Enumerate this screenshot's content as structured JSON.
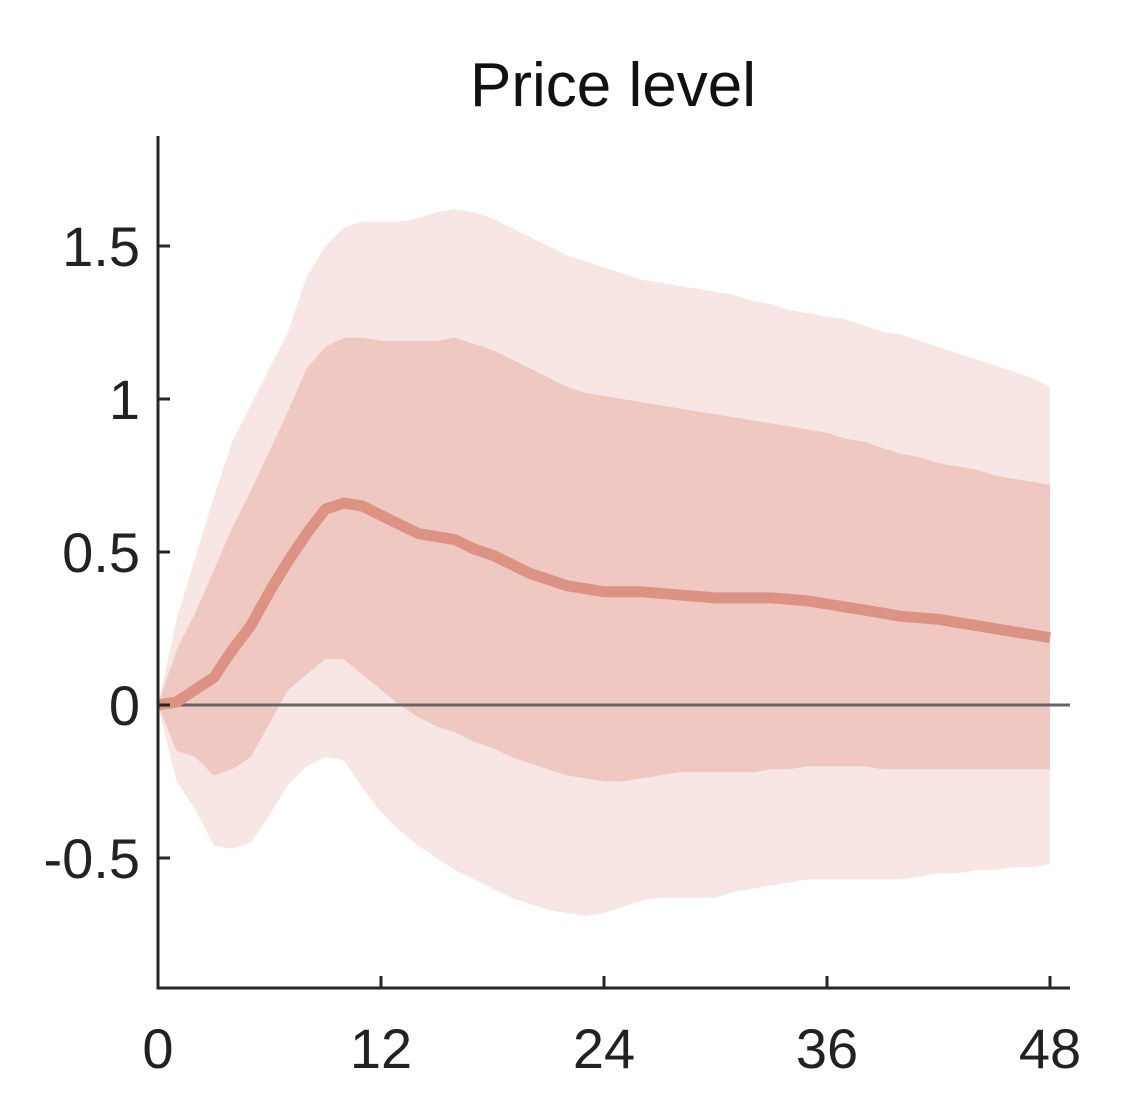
{
  "chart_data": {
    "type": "area",
    "title": "Price level",
    "xlabel": "",
    "ylabel": "",
    "xlim": [
      0,
      48
    ],
    "ylim": [
      -0.93,
      1.85
    ],
    "xticks": [
      0,
      12,
      24,
      36,
      48
    ],
    "xtick_labels": [
      "0",
      "12",
      "24",
      "36",
      "48"
    ],
    "yticks": [
      -0.5,
      0,
      0.5,
      1,
      1.5
    ],
    "ytick_labels": [
      "-0.5",
      "0",
      "0.5",
      "1",
      "1.5"
    ],
    "grid": false,
    "legend": "none",
    "zero_line": 0,
    "colors": {
      "outer_band": "#f7e6e3",
      "inner_band": "#efc8c1",
      "median_line": "#dc9384",
      "zero_line": "#666666",
      "axis": "#262626"
    },
    "x": [
      0,
      1,
      2,
      3,
      4,
      5,
      6,
      7,
      8,
      9,
      10,
      11,
      12,
      13,
      14,
      15,
      16,
      17,
      18,
      19,
      20,
      21,
      22,
      23,
      24,
      25,
      26,
      27,
      28,
      29,
      30,
      31,
      32,
      33,
      34,
      35,
      36,
      37,
      38,
      39,
      40,
      41,
      42,
      43,
      44,
      45,
      46,
      47,
      48
    ],
    "series": [
      {
        "role": "median",
        "values": [
          0.0,
          0.01,
          0.05,
          0.09,
          0.18,
          0.26,
          0.37,
          0.47,
          0.56,
          0.64,
          0.66,
          0.65,
          0.62,
          0.59,
          0.56,
          0.55,
          0.54,
          0.51,
          0.49,
          0.46,
          0.43,
          0.41,
          0.39,
          0.38,
          0.37,
          0.37,
          0.37,
          0.365,
          0.36,
          0.355,
          0.35,
          0.35,
          0.35,
          0.35,
          0.345,
          0.34,
          0.33,
          0.32,
          0.31,
          0.3,
          0.29,
          0.285,
          0.28,
          0.27,
          0.26,
          0.25,
          0.24,
          0.23,
          0.22
        ]
      },
      {
        "role": "inner_lower",
        "values": [
          0.0,
          -0.15,
          -0.17,
          -0.23,
          -0.21,
          -0.17,
          -0.06,
          0.05,
          0.1,
          0.15,
          0.15,
          0.1,
          0.05,
          0.0,
          -0.04,
          -0.07,
          -0.09,
          -0.12,
          -0.14,
          -0.17,
          -0.19,
          -0.21,
          -0.23,
          -0.24,
          -0.25,
          -0.25,
          -0.24,
          -0.23,
          -0.22,
          -0.22,
          -0.22,
          -0.22,
          -0.22,
          -0.21,
          -0.21,
          -0.2,
          -0.2,
          -0.2,
          -0.2,
          -0.21,
          -0.21,
          -0.21,
          -0.21,
          -0.21,
          -0.21,
          -0.21,
          -0.21,
          -0.21,
          -0.21
        ]
      },
      {
        "role": "inner_upper",
        "values": [
          0.0,
          0.18,
          0.3,
          0.44,
          0.58,
          0.7,
          0.83,
          0.96,
          1.1,
          1.17,
          1.2,
          1.2,
          1.19,
          1.19,
          1.19,
          1.19,
          1.2,
          1.18,
          1.16,
          1.13,
          1.1,
          1.07,
          1.04,
          1.02,
          1.01,
          1.0,
          0.99,
          0.98,
          0.97,
          0.96,
          0.95,
          0.94,
          0.93,
          0.92,
          0.91,
          0.9,
          0.89,
          0.87,
          0.86,
          0.84,
          0.82,
          0.81,
          0.79,
          0.78,
          0.77,
          0.75,
          0.74,
          0.73,
          0.72
        ]
      },
      {
        "role": "outer_lower",
        "values": [
          0.0,
          -0.25,
          -0.34,
          -0.46,
          -0.47,
          -0.45,
          -0.36,
          -0.26,
          -0.2,
          -0.17,
          -0.18,
          -0.27,
          -0.35,
          -0.41,
          -0.46,
          -0.5,
          -0.54,
          -0.57,
          -0.6,
          -0.63,
          -0.65,
          -0.67,
          -0.68,
          -0.69,
          -0.68,
          -0.66,
          -0.64,
          -0.63,
          -0.63,
          -0.63,
          -0.63,
          -0.61,
          -0.6,
          -0.59,
          -0.58,
          -0.57,
          -0.57,
          -0.57,
          -0.57,
          -0.57,
          -0.57,
          -0.56,
          -0.55,
          -0.55,
          -0.54,
          -0.54,
          -0.53,
          -0.53,
          -0.52
        ]
      },
      {
        "role": "outer_upper",
        "values": [
          0.0,
          0.28,
          0.48,
          0.68,
          0.86,
          0.98,
          1.1,
          1.22,
          1.4,
          1.5,
          1.56,
          1.58,
          1.58,
          1.58,
          1.59,
          1.61,
          1.62,
          1.61,
          1.59,
          1.56,
          1.53,
          1.5,
          1.47,
          1.45,
          1.43,
          1.41,
          1.39,
          1.38,
          1.37,
          1.36,
          1.35,
          1.34,
          1.32,
          1.31,
          1.29,
          1.28,
          1.27,
          1.26,
          1.24,
          1.22,
          1.21,
          1.19,
          1.17,
          1.15,
          1.13,
          1.11,
          1.09,
          1.07,
          1.04
        ]
      }
    ]
  }
}
